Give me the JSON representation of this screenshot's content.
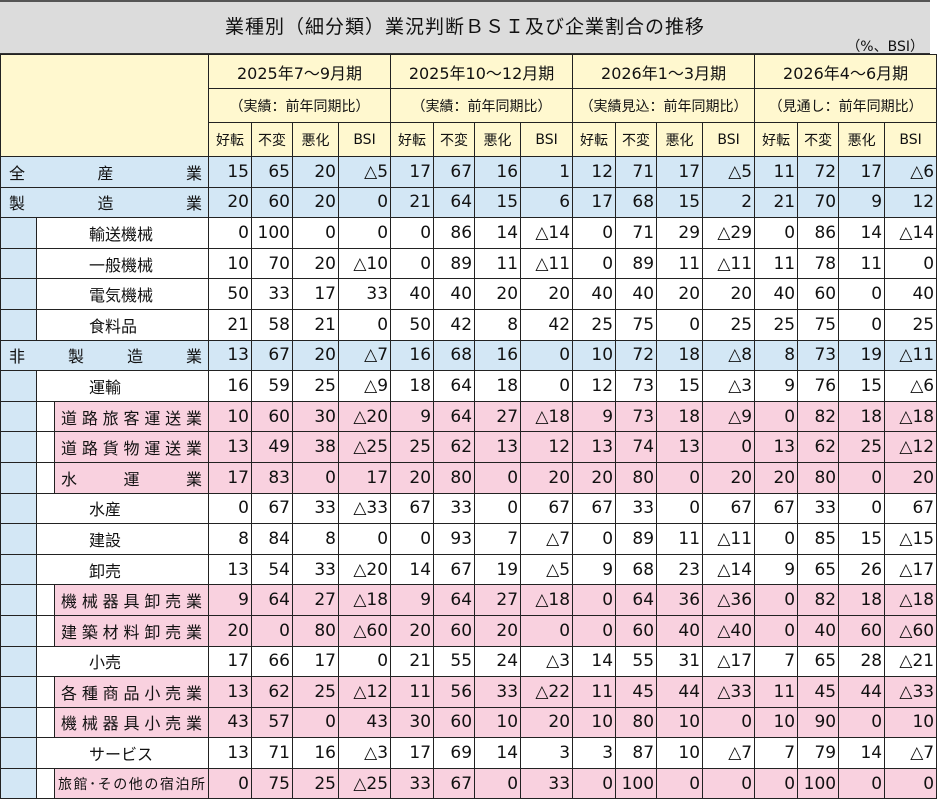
{
  "title": "業種別（細分類）業況判断ＢＳＩ及び企業割合の推移",
  "unit": "（%、BSI）",
  "periods": [
    {
      "label": "2025年7～9月期",
      "basis": "（実績：前年同期比）"
    },
    {
      "label": "2025年10～12月期",
      "basis": "（実績：前年同期比）"
    },
    {
      "label": "2026年1～3月期",
      "basis": "（実績見込：前年同期比）"
    },
    {
      "label": "2026年4～6月期",
      "basis": "（見通し：前年同期比）"
    }
  ],
  "columns": [
    "好転",
    "不変",
    "悪化",
    "BSI"
  ],
  "colors": {
    "header": "#fff8cf",
    "total": "#d3e7f5",
    "subcategory": "#f9d1df",
    "title_bar": "#dcdcdc"
  },
  "rows": [
    {
      "label": "全産業",
      "level": "total",
      "values": [
        "15",
        "65",
        "20",
        "△5",
        "17",
        "67",
        "16",
        "1",
        "12",
        "71",
        "17",
        "△5",
        "11",
        "72",
        "17",
        "△6"
      ]
    },
    {
      "label": "製造業",
      "level": "total",
      "values": [
        "20",
        "60",
        "20",
        "0",
        "21",
        "64",
        "15",
        "6",
        "17",
        "68",
        "15",
        "2",
        "21",
        "70",
        "9",
        "12"
      ]
    },
    {
      "label": "輸送機械",
      "level": "sub",
      "values": [
        "0",
        "100",
        "0",
        "0",
        "0",
        "86",
        "14",
        "△14",
        "0",
        "71",
        "29",
        "△29",
        "0",
        "86",
        "14",
        "△14"
      ]
    },
    {
      "label": "一般機械",
      "level": "sub",
      "values": [
        "10",
        "70",
        "20",
        "△10",
        "0",
        "89",
        "11",
        "△11",
        "0",
        "89",
        "11",
        "△11",
        "11",
        "78",
        "11",
        "0"
      ]
    },
    {
      "label": "電気機械",
      "level": "sub",
      "values": [
        "50",
        "33",
        "17",
        "33",
        "40",
        "40",
        "20",
        "20",
        "40",
        "40",
        "20",
        "20",
        "40",
        "60",
        "0",
        "40"
      ]
    },
    {
      "label": "食料品",
      "level": "sub",
      "values": [
        "21",
        "58",
        "21",
        "0",
        "50",
        "42",
        "8",
        "42",
        "25",
        "75",
        "0",
        "25",
        "25",
        "75",
        "0",
        "25"
      ]
    },
    {
      "label": "非製造業",
      "level": "total",
      "values": [
        "13",
        "67",
        "20",
        "△7",
        "16",
        "68",
        "16",
        "0",
        "10",
        "72",
        "18",
        "△8",
        "8",
        "73",
        "19",
        "△11"
      ]
    },
    {
      "label": "運輸",
      "level": "sub",
      "values": [
        "16",
        "59",
        "25",
        "△9",
        "18",
        "64",
        "18",
        "0",
        "12",
        "73",
        "15",
        "△3",
        "9",
        "76",
        "15",
        "△6"
      ]
    },
    {
      "label": "道路旅客運送業",
      "level": "subsub",
      "values": [
        "10",
        "60",
        "30",
        "△20",
        "9",
        "64",
        "27",
        "△18",
        "9",
        "73",
        "18",
        "△9",
        "0",
        "82",
        "18",
        "△18"
      ]
    },
    {
      "label": "道路貨物運送業",
      "level": "subsub",
      "values": [
        "13",
        "49",
        "38",
        "△25",
        "25",
        "62",
        "13",
        "12",
        "13",
        "74",
        "13",
        "0",
        "13",
        "62",
        "25",
        "△12"
      ]
    },
    {
      "label": "水運業",
      "level": "subsub",
      "values": [
        "17",
        "83",
        "0",
        "17",
        "20",
        "80",
        "0",
        "20",
        "20",
        "80",
        "0",
        "20",
        "20",
        "80",
        "0",
        "20"
      ]
    },
    {
      "label": "水産",
      "level": "sub",
      "values": [
        "0",
        "67",
        "33",
        "△33",
        "67",
        "33",
        "0",
        "67",
        "67",
        "33",
        "0",
        "67",
        "67",
        "33",
        "0",
        "67"
      ]
    },
    {
      "label": "建設",
      "level": "sub",
      "values": [
        "8",
        "84",
        "8",
        "0",
        "0",
        "93",
        "7",
        "△7",
        "0",
        "89",
        "11",
        "△11",
        "0",
        "85",
        "15",
        "△15"
      ]
    },
    {
      "label": "卸売",
      "level": "sub",
      "values": [
        "13",
        "54",
        "33",
        "△20",
        "14",
        "67",
        "19",
        "△5",
        "9",
        "68",
        "23",
        "△14",
        "9",
        "65",
        "26",
        "△17"
      ]
    },
    {
      "label": "機械器具卸売業",
      "level": "subsub",
      "values": [
        "9",
        "64",
        "27",
        "△18",
        "9",
        "64",
        "27",
        "△18",
        "0",
        "64",
        "36",
        "△36",
        "0",
        "82",
        "18",
        "△18"
      ]
    },
    {
      "label": "建築材料卸売業",
      "level": "subsub",
      "values": [
        "20",
        "0",
        "80",
        "△60",
        "20",
        "60",
        "20",
        "0",
        "0",
        "60",
        "40",
        "△40",
        "0",
        "40",
        "60",
        "△60"
      ]
    },
    {
      "label": "小売",
      "level": "sub",
      "values": [
        "17",
        "66",
        "17",
        "0",
        "21",
        "55",
        "24",
        "△3",
        "14",
        "55",
        "31",
        "△17",
        "7",
        "65",
        "28",
        "△21"
      ]
    },
    {
      "label": "各種商品小売業",
      "level": "subsub",
      "values": [
        "13",
        "62",
        "25",
        "△12",
        "11",
        "56",
        "33",
        "△22",
        "11",
        "45",
        "44",
        "△33",
        "11",
        "45",
        "44",
        "△33"
      ]
    },
    {
      "label": "機械器具小売業",
      "level": "subsub",
      "values": [
        "43",
        "57",
        "0",
        "43",
        "30",
        "60",
        "10",
        "20",
        "10",
        "80",
        "10",
        "0",
        "10",
        "90",
        "0",
        "10"
      ]
    },
    {
      "label": "サービス",
      "level": "sub",
      "values": [
        "13",
        "71",
        "16",
        "△3",
        "17",
        "69",
        "14",
        "3",
        "3",
        "87",
        "10",
        "△7",
        "7",
        "79",
        "14",
        "△7"
      ]
    },
    {
      "label": "旅館･その他の宿泊所",
      "level": "subsub",
      "values": [
        "0",
        "75",
        "25",
        "△25",
        "33",
        "67",
        "0",
        "33",
        "0",
        "100",
        "0",
        "0",
        "0",
        "100",
        "0",
        "0"
      ]
    }
  ]
}
